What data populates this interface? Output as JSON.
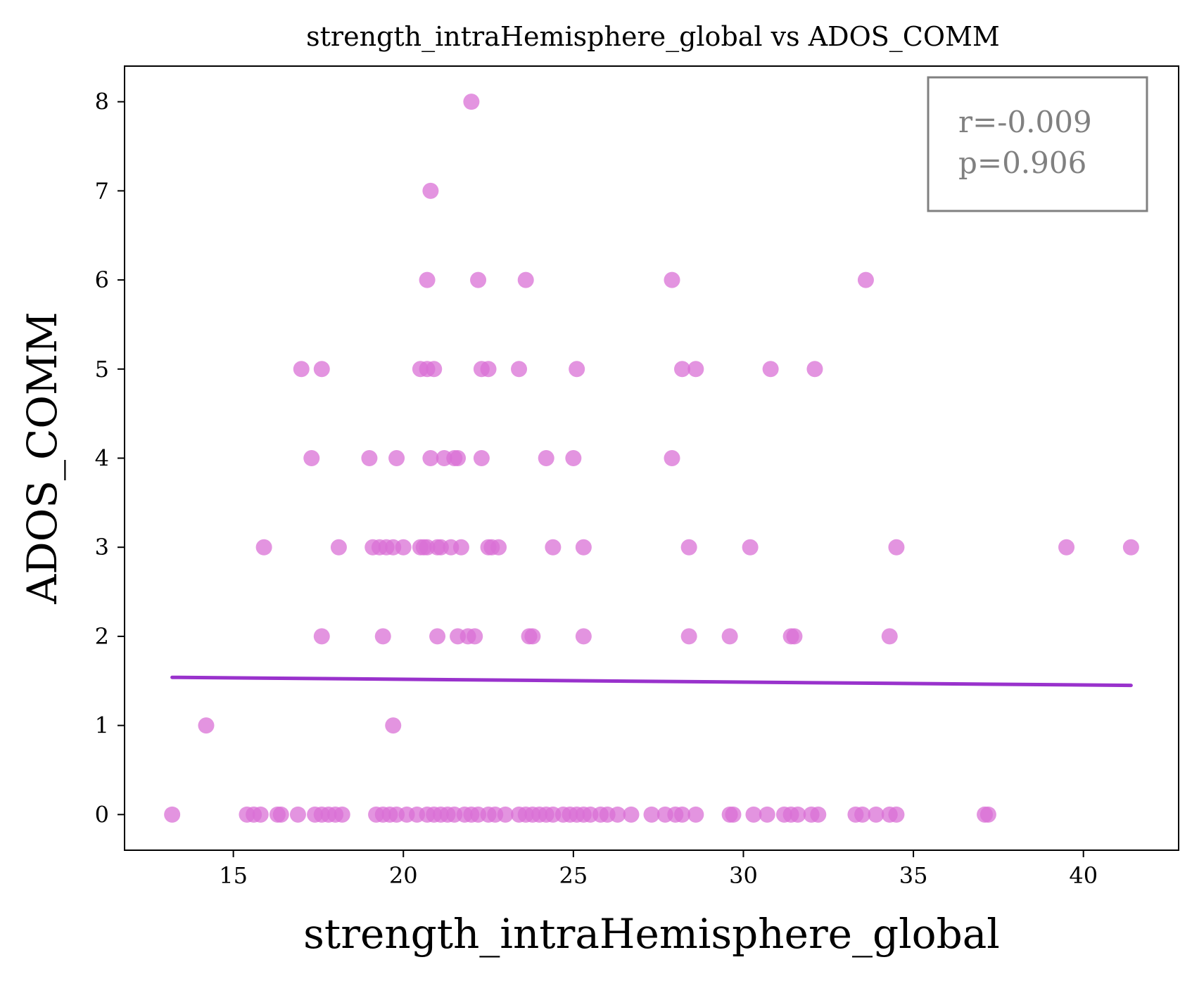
{
  "chart_data": {
    "type": "scatter",
    "title": "strength_intraHemisphere_global vs ADOS_COMM",
    "xlabel": "strength_intraHemisphere_global",
    "ylabel": "ADOS_COMM",
    "xlim": [
      11.8,
      42.8
    ],
    "ylim": [
      -0.4,
      8.4
    ],
    "xticks": [
      15,
      20,
      25,
      30,
      35,
      40
    ],
    "yticks": [
      0,
      1,
      2,
      3,
      4,
      5,
      6,
      7,
      8
    ],
    "grid": false,
    "point_color": "#DA70D6",
    "line_color": "#9932CC",
    "stats": {
      "r": "r=-0.009",
      "p": "p=0.906"
    },
    "regression": {
      "x": [
        13.2,
        41.4
      ],
      "y": [
        1.54,
        1.45
      ]
    },
    "points": [
      [
        22.0,
        8
      ],
      [
        20.8,
        7
      ],
      [
        20.7,
        6
      ],
      [
        22.2,
        6
      ],
      [
        23.6,
        6
      ],
      [
        27.9,
        6
      ],
      [
        33.6,
        6
      ],
      [
        17.0,
        5
      ],
      [
        17.6,
        5
      ],
      [
        20.5,
        5
      ],
      [
        20.7,
        5
      ],
      [
        20.9,
        5
      ],
      [
        22.3,
        5
      ],
      [
        22.5,
        5
      ],
      [
        23.4,
        5
      ],
      [
        25.1,
        5
      ],
      [
        28.2,
        5
      ],
      [
        28.6,
        5
      ],
      [
        30.8,
        5
      ],
      [
        32.1,
        5
      ],
      [
        17.3,
        4
      ],
      [
        19.0,
        4
      ],
      [
        19.8,
        4
      ],
      [
        20.8,
        4
      ],
      [
        21.2,
        4
      ],
      [
        21.5,
        4
      ],
      [
        21.6,
        4
      ],
      [
        22.3,
        4
      ],
      [
        24.2,
        4
      ],
      [
        25.0,
        4
      ],
      [
        27.9,
        4
      ],
      [
        15.9,
        3
      ],
      [
        18.1,
        3
      ],
      [
        19.1,
        3
      ],
      [
        19.3,
        3
      ],
      [
        19.5,
        3
      ],
      [
        19.7,
        3
      ],
      [
        20.0,
        3
      ],
      [
        20.5,
        3
      ],
      [
        20.6,
        3
      ],
      [
        20.7,
        3
      ],
      [
        21.0,
        3
      ],
      [
        21.1,
        3
      ],
      [
        21.4,
        3
      ],
      [
        21.7,
        3
      ],
      [
        22.5,
        3
      ],
      [
        22.6,
        3
      ],
      [
        22.8,
        3
      ],
      [
        24.4,
        3
      ],
      [
        25.3,
        3
      ],
      [
        28.4,
        3
      ],
      [
        30.2,
        3
      ],
      [
        34.5,
        3
      ],
      [
        39.5,
        3
      ],
      [
        41.4,
        3
      ],
      [
        17.6,
        2
      ],
      [
        19.4,
        2
      ],
      [
        21.0,
        2
      ],
      [
        21.6,
        2
      ],
      [
        21.9,
        2
      ],
      [
        22.1,
        2
      ],
      [
        23.7,
        2
      ],
      [
        23.8,
        2
      ],
      [
        25.3,
        2
      ],
      [
        28.4,
        2
      ],
      [
        29.6,
        2
      ],
      [
        31.4,
        2
      ],
      [
        31.5,
        2
      ],
      [
        34.3,
        2
      ],
      [
        14.2,
        1
      ],
      [
        19.7,
        1
      ],
      [
        13.2,
        0
      ],
      [
        15.4,
        0
      ],
      [
        15.6,
        0
      ],
      [
        15.8,
        0
      ],
      [
        16.3,
        0
      ],
      [
        16.4,
        0
      ],
      [
        16.9,
        0
      ],
      [
        17.4,
        0
      ],
      [
        17.6,
        0
      ],
      [
        17.8,
        0
      ],
      [
        18.0,
        0
      ],
      [
        18.2,
        0
      ],
      [
        19.2,
        0
      ],
      [
        19.4,
        0
      ],
      [
        19.6,
        0
      ],
      [
        19.8,
        0
      ],
      [
        20.1,
        0
      ],
      [
        20.4,
        0
      ],
      [
        20.7,
        0
      ],
      [
        20.9,
        0
      ],
      [
        21.1,
        0
      ],
      [
        21.3,
        0
      ],
      [
        21.5,
        0
      ],
      [
        21.8,
        0
      ],
      [
        22.0,
        0
      ],
      [
        22.2,
        0
      ],
      [
        22.5,
        0
      ],
      [
        22.7,
        0
      ],
      [
        23.0,
        0
      ],
      [
        23.4,
        0
      ],
      [
        23.6,
        0
      ],
      [
        23.8,
        0
      ],
      [
        24.0,
        0
      ],
      [
        24.2,
        0
      ],
      [
        24.4,
        0
      ],
      [
        24.7,
        0
      ],
      [
        24.9,
        0
      ],
      [
        25.1,
        0
      ],
      [
        25.3,
        0
      ],
      [
        25.5,
        0
      ],
      [
        25.8,
        0
      ],
      [
        26.0,
        0
      ],
      [
        26.3,
        0
      ],
      [
        26.7,
        0
      ],
      [
        27.3,
        0
      ],
      [
        27.7,
        0
      ],
      [
        28.0,
        0
      ],
      [
        28.2,
        0
      ],
      [
        28.6,
        0
      ],
      [
        29.6,
        0
      ],
      [
        29.7,
        0
      ],
      [
        30.3,
        0
      ],
      [
        30.7,
        0
      ],
      [
        31.2,
        0
      ],
      [
        31.4,
        0
      ],
      [
        31.6,
        0
      ],
      [
        32.0,
        0
      ],
      [
        32.2,
        0
      ],
      [
        33.3,
        0
      ],
      [
        33.5,
        0
      ],
      [
        33.9,
        0
      ],
      [
        34.3,
        0
      ],
      [
        34.5,
        0
      ],
      [
        37.1,
        0
      ],
      [
        37.2,
        0
      ]
    ]
  }
}
